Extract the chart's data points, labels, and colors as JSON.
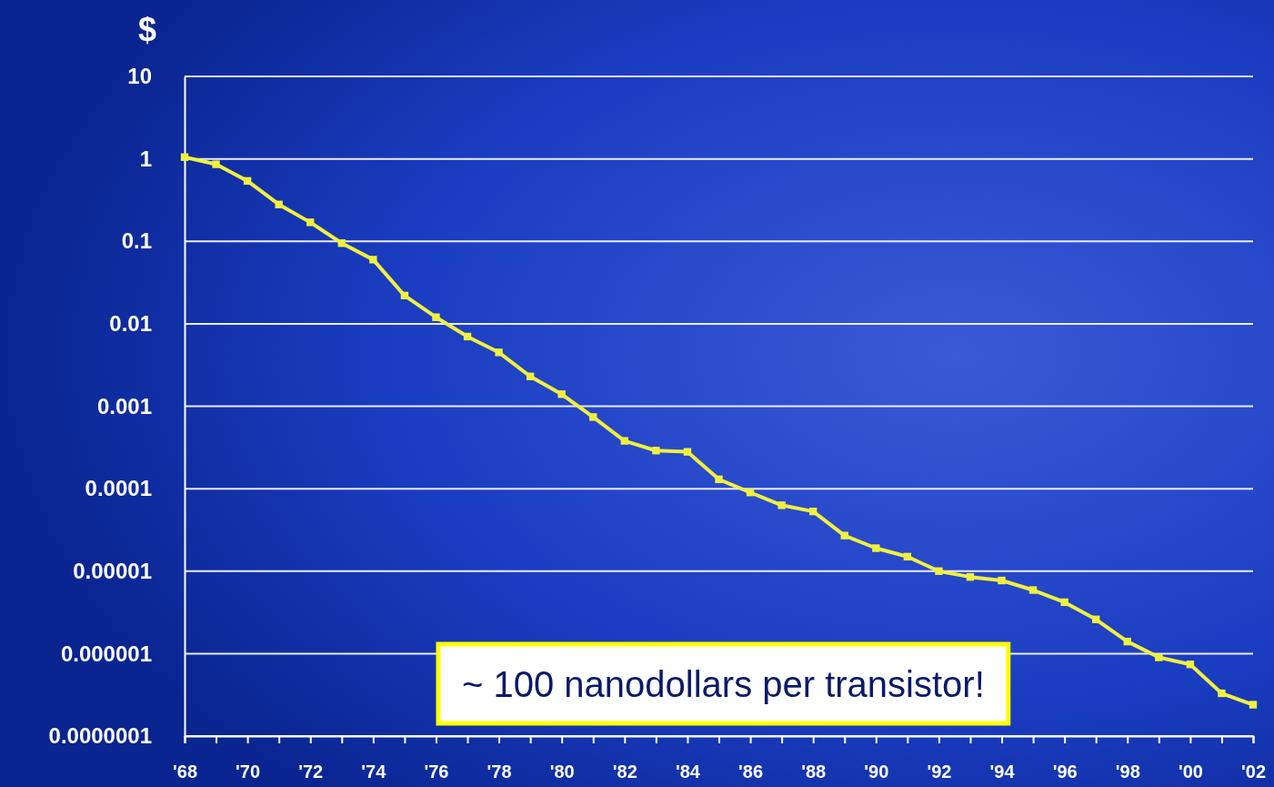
{
  "chart_data": {
    "type": "line",
    "ylabel": "$",
    "log": "y",
    "grid": "y",
    "marker": "square",
    "line_style": "solid",
    "legend": false,
    "annotations": [
      "~ 100 nanodollars per transistor!"
    ],
    "xlim": [
      1968,
      2002
    ],
    "xticks": [
      {
        "value": 1968,
        "label": "'68"
      },
      {
        "value": 1969,
        "label": null
      },
      {
        "value": 1970,
        "label": "'70"
      },
      {
        "value": 1971,
        "label": null
      },
      {
        "value": 1972,
        "label": "'72"
      },
      {
        "value": 1973,
        "label": null
      },
      {
        "value": 1974,
        "label": "'74"
      },
      {
        "value": 1975,
        "label": null
      },
      {
        "value": 1976,
        "label": "'76"
      },
      {
        "value": 1977,
        "label": null
      },
      {
        "value": 1978,
        "label": "'78"
      },
      {
        "value": 1979,
        "label": null
      },
      {
        "value": 1980,
        "label": "'80"
      },
      {
        "value": 1981,
        "label": null
      },
      {
        "value": 1982,
        "label": "'82"
      },
      {
        "value": 1983,
        "label": null
      },
      {
        "value": 1984,
        "label": "'84"
      },
      {
        "value": 1985,
        "label": null
      },
      {
        "value": 1986,
        "label": "'86"
      },
      {
        "value": 1987,
        "label": null
      },
      {
        "value": 1988,
        "label": "'88"
      },
      {
        "value": 1989,
        "label": null
      },
      {
        "value": 1990,
        "label": "'90"
      },
      {
        "value": 1991,
        "label": null
      },
      {
        "value": 1992,
        "label": "'92"
      },
      {
        "value": 1993,
        "label": null
      },
      {
        "value": 1994,
        "label": "'94"
      },
      {
        "value": 1995,
        "label": null
      },
      {
        "value": 1996,
        "label": "'96"
      },
      {
        "value": 1997,
        "label": null
      },
      {
        "value": 1998,
        "label": "'98"
      },
      {
        "value": 1999,
        "label": null
      },
      {
        "value": 2000,
        "label": "'00"
      },
      {
        "value": 2001,
        "label": null
      },
      {
        "value": 2002,
        "label": "'02"
      }
    ],
    "ylim": [
      1e-07,
      10
    ],
    "yticks": [
      {
        "value": 1e-07,
        "label": "0.0000001"
      },
      {
        "value": 1e-06,
        "label": "0.000001"
      },
      {
        "value": 1e-05,
        "label": "0.00001"
      },
      {
        "value": 0.0001,
        "label": "0.0001"
      },
      0.001,
      0.01,
      0.1,
      1,
      10
    ],
    "x": [
      1968,
      1969,
      1970,
      1971,
      1972,
      1973,
      1974,
      1975,
      1976,
      1977,
      1978,
      1979,
      1980,
      1981,
      1982,
      1983,
      1984,
      1985,
      1986,
      1987,
      1988,
      1989,
      1990,
      1991,
      1992,
      1993,
      1994,
      1995,
      1996,
      1997,
      1998,
      1999,
      2000,
      2001,
      2002
    ],
    "series": [
      {
        "color": "#f0f040",
        "values": [
          1.05,
          0.86,
          0.54,
          0.28,
          0.17,
          0.095,
          0.06,
          0.022,
          0.012,
          0.007,
          0.0045,
          0.0023,
          0.0014,
          0.00074,
          0.00038,
          0.00029,
          0.00028,
          0.00013,
          9e-05,
          6.3e-05,
          5.3e-05,
          2.7e-05,
          1.9e-05,
          1.5e-05,
          1e-05,
          8.5e-06,
          7.7e-06,
          5.9e-06,
          4.2e-06,
          2.6e-06,
          1.4e-06,
          9e-07,
          7.4e-07,
          3.3e-07,
          2.4e-07
        ]
      }
    ]
  }
}
